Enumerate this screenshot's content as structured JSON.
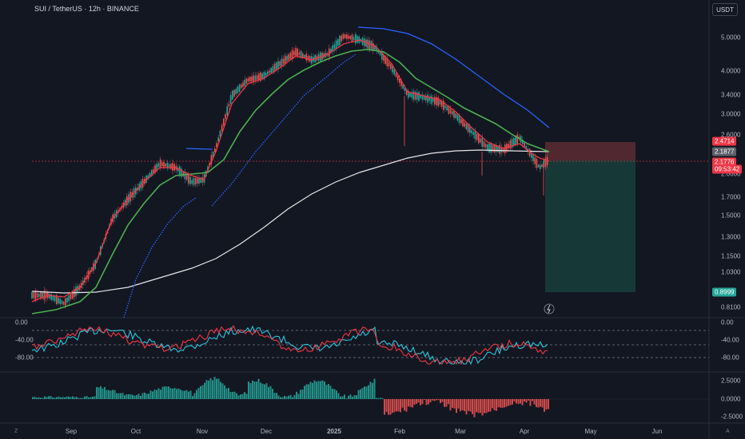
{
  "header": {
    "title": "SUI / TetherUS · 12h · BINANCE",
    "currency_button": "USDT"
  },
  "price_axis": {
    "labels": [
      "5.0000",
      "4.0000",
      "3.4000",
      "3.0000",
      "2.6000",
      "2.0000",
      "1.7000",
      "1.5000",
      "1.3000",
      "1.1500",
      "1.0300",
      "0.8100"
    ]
  },
  "price_tags": {
    "stop": "2.4714",
    "sma": "2.1877",
    "last_price": "2.1776",
    "countdown": "09:53:42",
    "target": "0.8999"
  },
  "oscillator_axis": {
    "labels": [
      "0.00",
      "-40.00",
      "-80.00"
    ]
  },
  "oscillator_left_labels": [
    "0.00",
    "-40.00",
    "-80.00"
  ],
  "macd_axis": {
    "labels": [
      "2.5000",
      "0.0000",
      "-2.5000"
    ]
  },
  "time_axis": {
    "labels": [
      "Sep",
      "Oct",
      "Nov",
      "Dec",
      "2025",
      "Feb",
      "Mar",
      "Apr",
      "May",
      "Jun"
    ]
  },
  "corner_marks": {
    "left": "Z",
    "right": "A"
  },
  "colors": {
    "background": "#131722",
    "up_candle": "#26a69a",
    "down_candle": "#ef5350",
    "ema_fast": "#f23645",
    "ema_slow": "#4caf50",
    "ma_blue": "#2962ff",
    "ma_white": "#e6e6e6",
    "stop_zone": "#5c2b33",
    "target_zone": "#173d3a"
  },
  "icons": {
    "alert": "lightning-icon"
  }
}
